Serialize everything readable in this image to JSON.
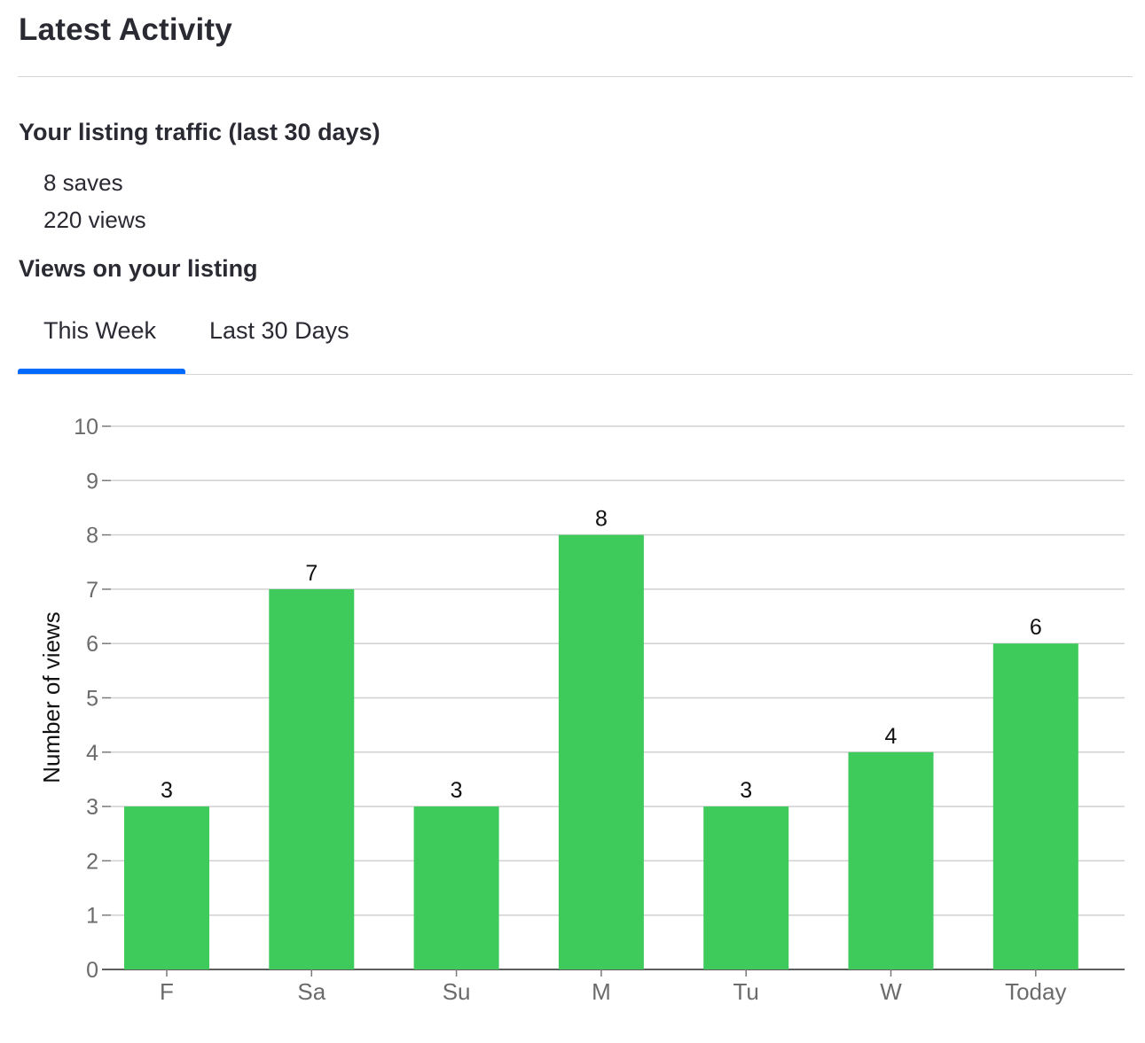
{
  "header": {
    "title": "Latest Activity"
  },
  "traffic": {
    "heading": "Your listing traffic (last 30 days)",
    "saves": "8 saves",
    "views": "220 views"
  },
  "views_section": {
    "heading": "Views on your listing",
    "tabs": [
      {
        "label": "This Week",
        "selected": true
      },
      {
        "label": "Last 30 Days",
        "selected": false
      }
    ]
  },
  "colors": {
    "bar": "#3fca5c",
    "tab_indicator": "#006aff",
    "gridline": "#d0d0d0",
    "axis_text": "#6b6b6b"
  },
  "chart_data": {
    "type": "bar",
    "categories": [
      "F",
      "Sa",
      "Su",
      "M",
      "Tu",
      "W",
      "Today"
    ],
    "values": [
      3,
      7,
      3,
      8,
      3,
      4,
      6
    ],
    "data_labels": true,
    "title": "",
    "xlabel": "",
    "ylabel": "Number of views",
    "ylim": [
      0,
      10
    ],
    "yticks": [
      0,
      1,
      2,
      3,
      4,
      5,
      6,
      7,
      8,
      9,
      10
    ],
    "grid": true,
    "legend": "none"
  }
}
